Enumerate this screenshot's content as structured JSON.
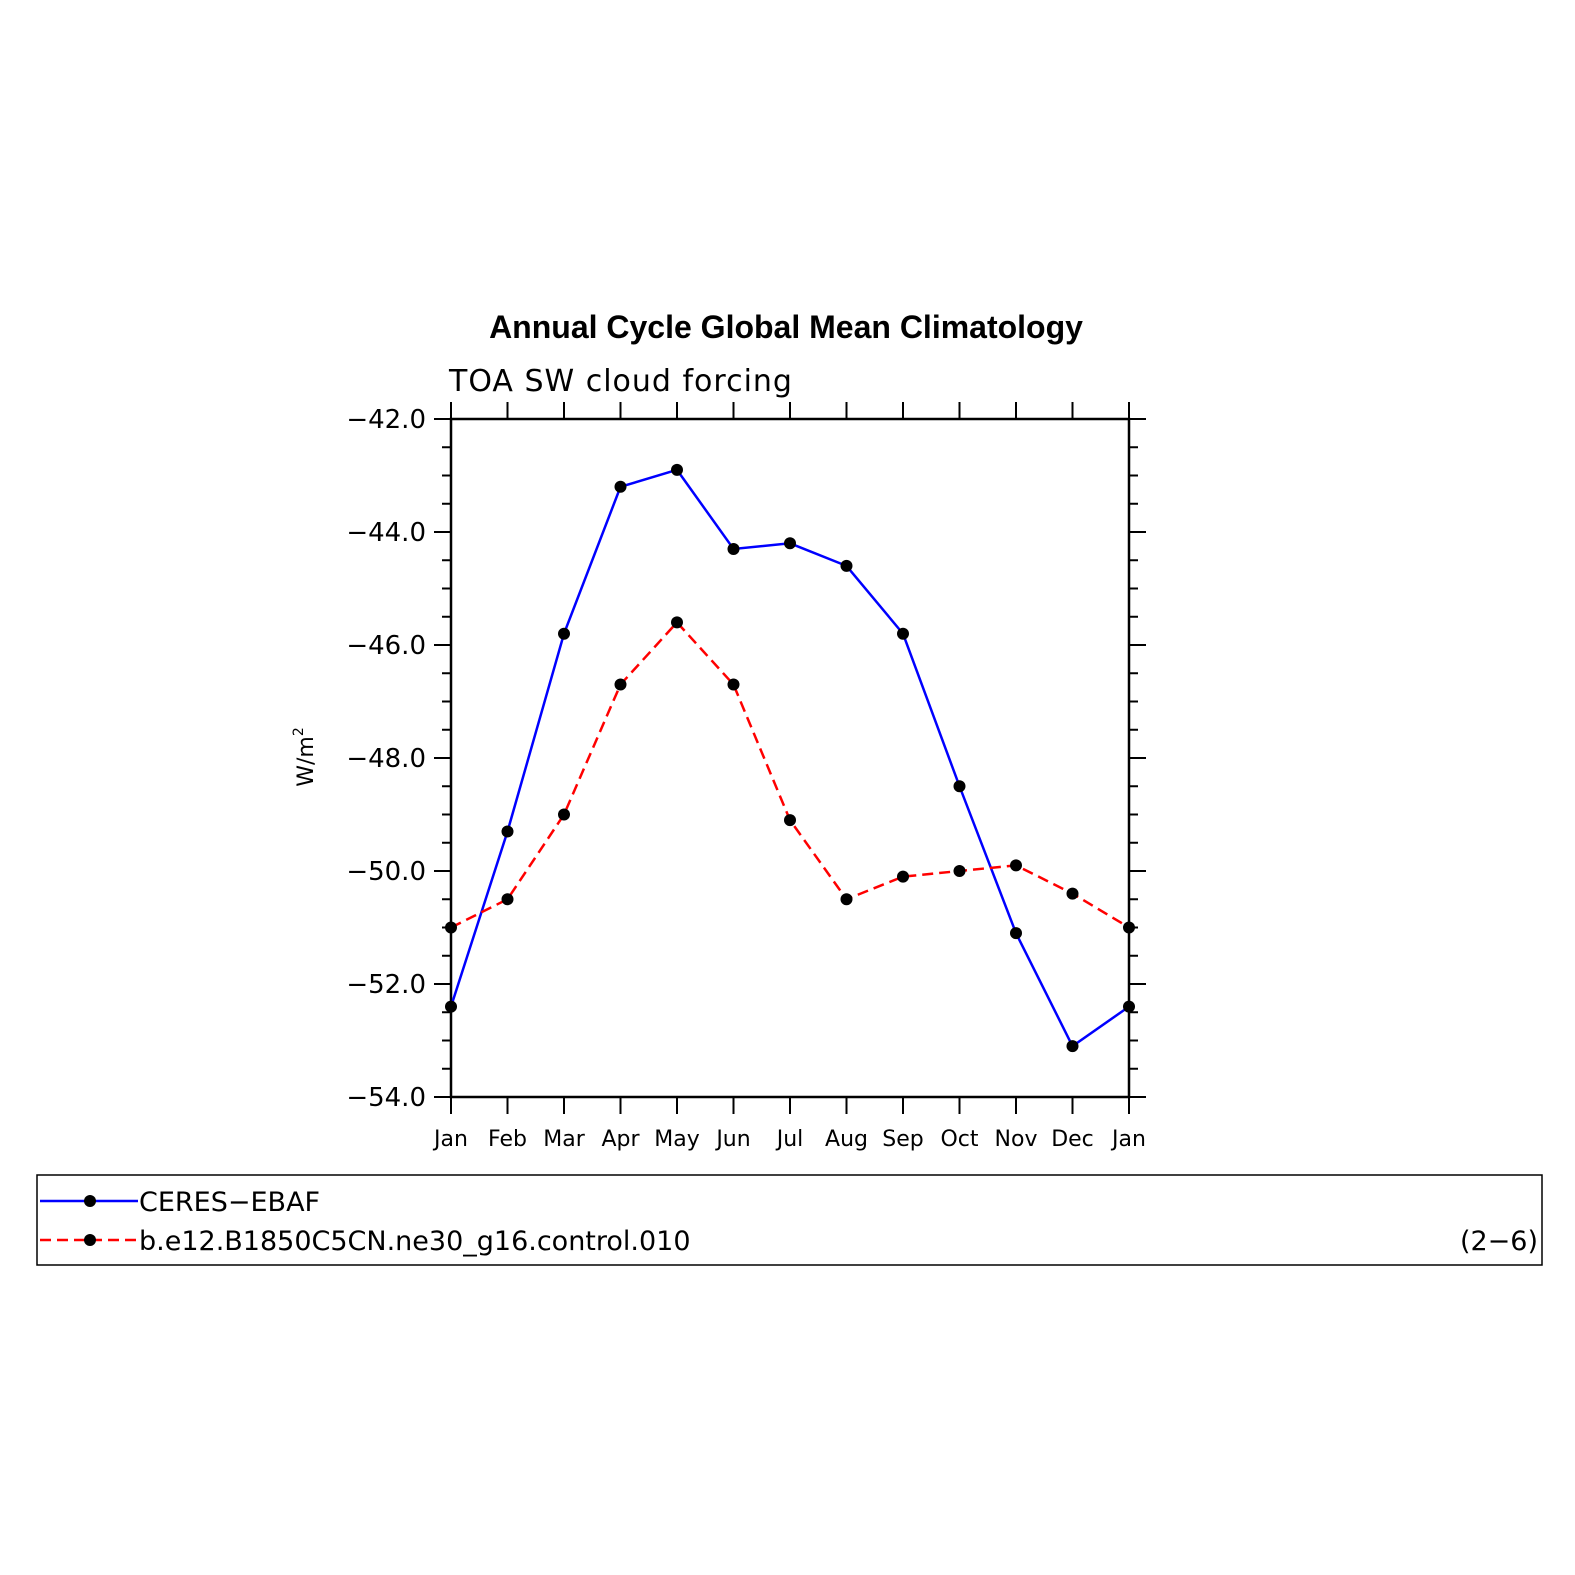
{
  "chart_data": {
    "type": "line",
    "title": "Annual Cycle Global Mean Climatology",
    "subtitle": "TOA SW cloud forcing",
    "ylabel": "W/m",
    "ylabel_sup": "2",
    "ylim": [
      -54.0,
      -42.0
    ],
    "yticks": [
      -42.0,
      -44.0,
      -46.0,
      -48.0,
      -50.0,
      -52.0,
      -54.0
    ],
    "ytick_labels": [
      "−42.0",
      "−44.0",
      "−46.0",
      "−48.0",
      "−50.0",
      "−52.0",
      "−54.0"
    ],
    "categories": [
      "Jan",
      "Feb",
      "Mar",
      "Apr",
      "May",
      "Jun",
      "Jul",
      "Aug",
      "Sep",
      "Oct",
      "Nov",
      "Dec",
      "Jan"
    ],
    "series": [
      {
        "name": "CERES−EBAF",
        "color": "#0000ff",
        "style": "solid",
        "values": [
          -52.4,
          -49.3,
          -45.8,
          -43.2,
          -42.9,
          -44.3,
          -44.2,
          -44.6,
          -45.8,
          -48.5,
          -51.1,
          -53.1,
          -52.4
        ]
      },
      {
        "name": "b.e12.B1850C5CN.ne30_g16.control.010",
        "color": "#ff0000",
        "style": "dashed",
        "values": [
          -51.0,
          -50.5,
          -49.0,
          -46.7,
          -45.6,
          -46.7,
          -49.1,
          -50.5,
          -50.1,
          -50.0,
          -49.9,
          -50.4,
          -51.0
        ]
      }
    ],
    "legend_placement": "bottom",
    "panel_label": "(2−6)"
  }
}
